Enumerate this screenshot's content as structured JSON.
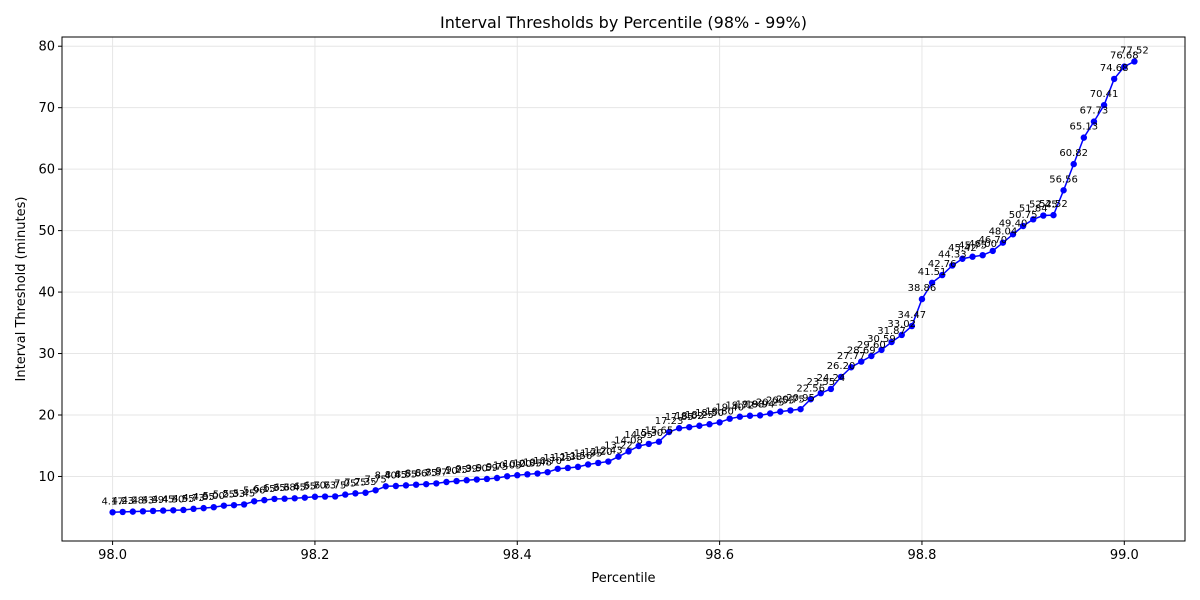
{
  "chart_data": {
    "type": "line",
    "title": "Interval Thresholds by Percentile (98% - 99%)",
    "xlabel": "Percentile",
    "ylabel": "Interval Threshold (minutes)",
    "xlim": [
      97.95,
      99.06
    ],
    "ylim": [
      -0.5,
      81.5
    ],
    "xticks": [
      98.0,
      98.2,
      98.4,
      98.6,
      98.8,
      99.0
    ],
    "xtick_labels": [
      "98.0",
      "98.2",
      "98.4",
      "98.6",
      "98.8",
      "99.0"
    ],
    "yticks": [
      10,
      20,
      30,
      40,
      50,
      60,
      70,
      80
    ],
    "ytick_labels": [
      "10",
      "20",
      "30",
      "40",
      "50",
      "60",
      "70",
      "80"
    ],
    "grid": true,
    "color": "#0000ff",
    "series": [
      {
        "x": [
          98.0,
          98.01,
          98.02,
          98.03,
          98.04,
          98.05,
          98.06,
          98.07,
          98.08,
          98.09,
          98.1,
          98.11,
          98.12,
          98.13,
          98.14,
          98.15,
          98.16,
          98.17,
          98.18,
          98.19,
          98.2,
          98.21,
          98.22,
          98.23,
          98.24,
          98.25,
          98.26,
          98.27,
          98.28,
          98.29,
          98.3,
          98.31,
          98.32,
          98.33,
          98.34,
          98.35,
          98.36,
          98.37,
          98.38,
          98.39,
          98.4,
          98.41,
          98.42,
          98.43,
          98.44,
          98.45,
          98.46,
          98.47,
          98.48,
          98.49,
          98.5,
          98.51,
          98.52,
          98.53,
          98.54,
          98.55,
          98.56,
          98.57,
          98.58,
          98.59,
          98.6,
          98.61,
          98.62,
          98.63,
          98.64,
          98.65,
          98.66,
          98.67,
          98.68,
          98.69,
          98.7,
          98.71,
          98.72,
          98.73,
          98.74,
          98.75,
          98.76,
          98.77,
          98.78,
          98.79,
          98.8,
          98.81,
          98.82,
          98.83,
          98.84,
          98.85,
          98.86,
          98.87,
          98.88,
          98.89,
          98.9,
          98.91,
          98.92,
          98.93,
          98.94,
          98.95,
          98.96,
          98.97,
          98.98,
          98.99,
          99.0,
          99.01
        ],
        "y": [
          4.17,
          4.23,
          4.28,
          4.33,
          4.39,
          4.45,
          4.5,
          4.55,
          4.73,
          4.85,
          5.0,
          5.25,
          5.33,
          5.45,
          5.96,
          6.15,
          6.35,
          6.38,
          6.45,
          6.55,
          6.7,
          6.73,
          6.75,
          7.05,
          7.25,
          7.35,
          7.75,
          8.4,
          8.45,
          8.55,
          8.66,
          8.75,
          8.87,
          9.1,
          9.25,
          9.39,
          9.5,
          9.59,
          9.75,
          10.03,
          10.2,
          10.35,
          10.48,
          10.7,
          11.25,
          11.38,
          11.56,
          11.95,
          12.2,
          12.43,
          13.22,
          14.08,
          14.95,
          15.3,
          15.65,
          17.23,
          17.85,
          18.02,
          18.25,
          18.5,
          18.8,
          19.4,
          19.72,
          19.88,
          19.94,
          20.25,
          20.55,
          20.75,
          20.95,
          22.56,
          23.55,
          24.24,
          26.2,
          27.77,
          28.69,
          29.6,
          30.59,
          31.87,
          33.02,
          34.47,
          38.86,
          41.51,
          42.76,
          44.33,
          45.42,
          45.75,
          46.0,
          46.7,
          48.04,
          49.4,
          50.75,
          51.84,
          52.45,
          52.52,
          56.56,
          60.82,
          65.13,
          67.73,
          70.41,
          74.68,
          76.68,
          77.52
        ],
        "labels": [
          "4.17",
          "4.23",
          "4.28",
          "4.33",
          "4.39",
          "4.45",
          "4.50",
          "4.55",
          "4.73",
          "4.85",
          "5.00",
          "5.25",
          "5.33",
          "5.45",
          "5.96",
          "6.15",
          "6.35",
          "6.38",
          "6.45",
          "6.55",
          "6.70",
          "6.73",
          "6.75",
          "7.05",
          "7.25",
          "7.35",
          "7.75",
          "8.40",
          "8.45",
          "8.55",
          "8.66",
          "8.75",
          "8.87",
          "9.10",
          "9.25",
          "9.39",
          "9.50",
          "9.59",
          "9.75",
          "10.03",
          "10.20",
          "10.35",
          "10.48",
          "10.70",
          "11.25",
          "11.38",
          "11.56",
          "11.95",
          "12.20",
          "12.43",
          "13.22",
          "14.08",
          "14.95",
          "15.30",
          "15.65",
          "17.23",
          "17.85",
          "18.02",
          "18.25",
          "18.50",
          "18.80",
          "19.40",
          "19.72",
          "19.88",
          "19.94",
          "20.25",
          "20.55",
          "20.75",
          "20.95",
          "22.56",
          "23.55",
          "24.24",
          "26.20",
          "27.77",
          "28.69",
          "29.60",
          "30.59",
          "31.87",
          "33.02",
          "34.47",
          "38.86",
          "41.51",
          "42.76",
          "44.33",
          "45.42",
          "45.75",
          "46.00",
          "46.70",
          "48.04",
          "49.40",
          "50.75",
          "51.84",
          "52.45",
          "52.52",
          "56.56",
          "60.82",
          "65.13",
          "67.73",
          "70.41",
          "74.68",
          "76.68",
          "77.52"
        ]
      }
    ]
  }
}
